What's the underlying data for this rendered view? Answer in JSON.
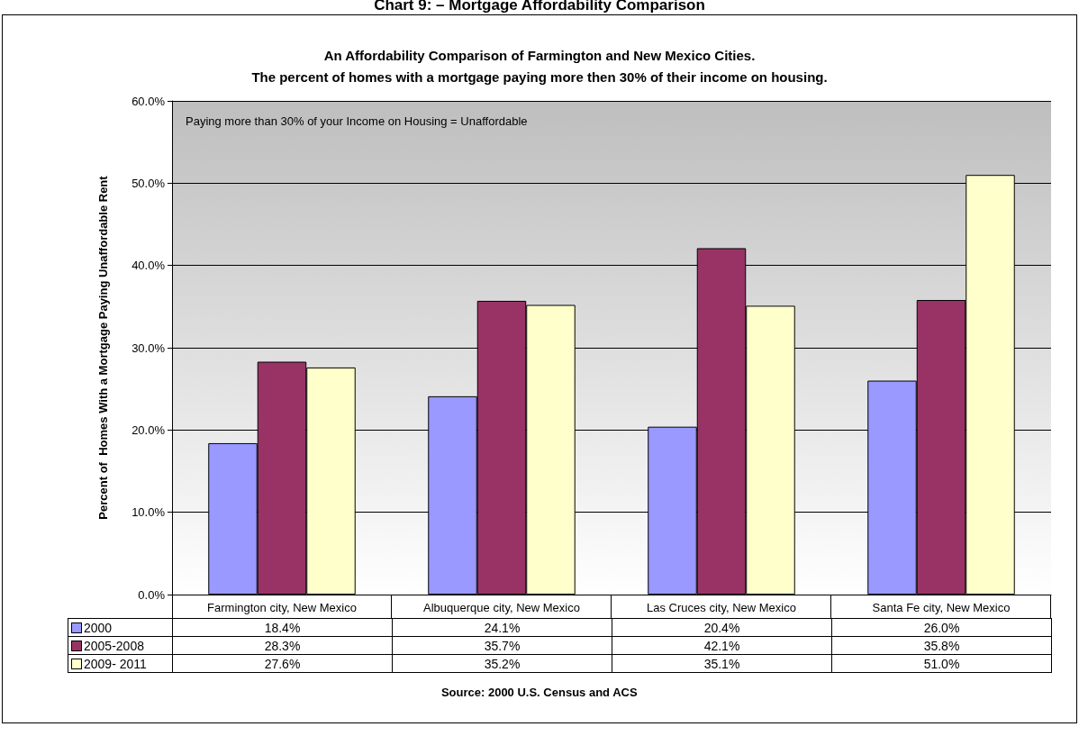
{
  "chart_data": {
    "type": "bar",
    "title": "Chart 9: – Mortgage Affordability Comparison",
    "subtitle": "An Affordability Comparison of Farmington and New Mexico Cities.\nThe percent of homes with a mortgage paying more then 30% of their income on housing.",
    "ylabel": "Percent of  Homes With a Mortgage Paying Unaffordable Rent",
    "categories": [
      "Farmington city, New Mexico",
      "Albuquerque city, New Mexico",
      "Las Cruces city, New Mexico",
      "Santa Fe city, New Mexico"
    ],
    "series": [
      {
        "name": "2000",
        "color": "#9999ff",
        "values": [
          18.4,
          24.1,
          20.4,
          26.0
        ],
        "value_labels": [
          "18.4%",
          "24.1%",
          "20.4%",
          "26.0%"
        ]
      },
      {
        "name": "2005-2008",
        "color": "#993366",
        "values": [
          28.3,
          35.7,
          42.1,
          35.8
        ],
        "value_labels": [
          "28.3%",
          "35.7%",
          "42.1%",
          "35.8%"
        ]
      },
      {
        "name": "2009- 2011",
        "color": "#ffffcc",
        "values": [
          27.6,
          35.2,
          35.1,
          51.0
        ],
        "value_labels": [
          "27.6%",
          "35.2%",
          "35.1%",
          "51.0%"
        ]
      }
    ],
    "ylim": [
      0,
      60
    ],
    "yticks": [
      {
        "value": 0,
        "label": "0.0%"
      },
      {
        "value": 10,
        "label": "10.0%"
      },
      {
        "value": 20,
        "label": "20.0%"
      },
      {
        "value": 30,
        "label": "30.0%"
      },
      {
        "value": 40,
        "label": "40.0%"
      },
      {
        "value": 50,
        "label": "50.0%"
      },
      {
        "value": 60,
        "label": "60.0%"
      }
    ],
    "grid": "y",
    "legend": "bottom",
    "annotations": [
      "Paying more than 30% of your Income on Housing = Unaffordable",
      "Source: 2000 U.S. Census and ACS"
    ]
  }
}
